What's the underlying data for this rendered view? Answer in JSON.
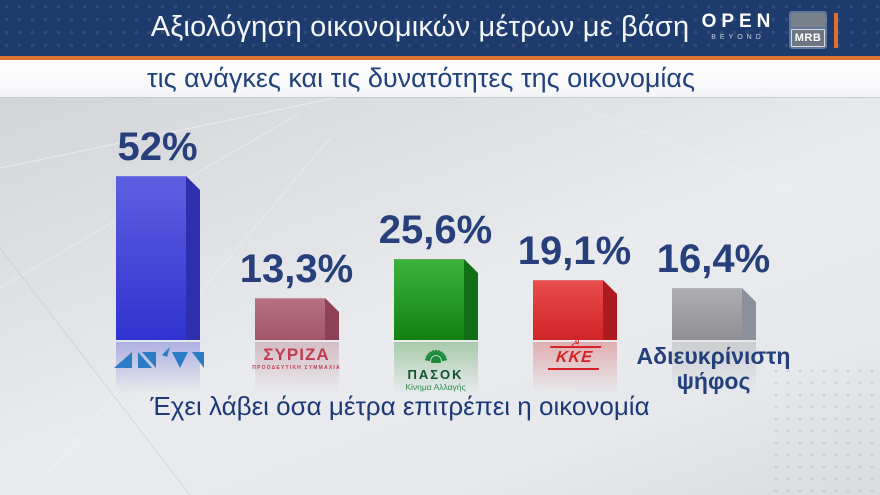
{
  "header": {
    "title": "Αξιολόγηση οικονομικών μέτρων με βάση",
    "subtitle": "τις ανάγκες και τις δυνατότητες της οικονομίας",
    "open_logo": {
      "text": "OPEN",
      "subtext": "BEYOND"
    },
    "mrb_logo": "MRB",
    "colors": {
      "banner": "#1e3b6d",
      "accent_orange": "#dd7231",
      "title_text": "#f4f6fa",
      "subtitle_text": "#21427c"
    }
  },
  "chart_data": {
    "type": "bar",
    "title": "Αξιολόγηση οικονομικών μέτρων με βάση τις ανάγκες και τις δυνατότητες της οικονομίας",
    "caption": "Έχει λάβει όσα μέτρα επιτρέπει η οικονομία",
    "unit": "%",
    "decimal_separator": ",",
    "ylim": [
      0,
      60
    ],
    "grid": false,
    "legend": false,
    "value_text_color": "#27407b",
    "caption_color": "#1d3a78",
    "categories": [
      "ΝΔ",
      "ΣΥΡΙΖΑ",
      "ΠΑΣΟΚ",
      "ΚΚΕ",
      "Αδιευκρίνιστη ψήφος"
    ],
    "values": [
      52,
      13.3,
      25.6,
      19.1,
      16.4
    ],
    "bars": [
      {
        "party": "ΝΔ",
        "value": 52,
        "value_label": "52%",
        "colors": {
          "top": "#5d5fe2",
          "bottom": "#3032cf",
          "side": "#2e2fae"
        },
        "logo": {
          "kind": "nd-triangles",
          "color": "#2b7cc4",
          "alt": "ΝΔ"
        }
      },
      {
        "party": "ΣΥΡΙΖΑ",
        "value": 13.3,
        "value_label": "13,3%",
        "colors": {
          "top": "#b67182",
          "bottom": "#a15767",
          "side": "#8e4156"
        },
        "logo": {
          "kind": "text",
          "main": "ΣΥΡΙΖΑ",
          "sub": "ΠΡΟΟΔΕΥΤΙΚΗ ΣΥΜΜΑΧΙΑ",
          "color": "#c23b4e"
        }
      },
      {
        "party": "ΠΑΣΟΚ",
        "value": 25.6,
        "value_label": "25,6%",
        "colors": {
          "top": "#3cb33c",
          "bottom": "#128012",
          "side": "#0f6f14"
        },
        "logo": {
          "kind": "pasok",
          "main": "ΠΑΣΟΚ",
          "sub": "Κίνημα Αλλαγής",
          "color": "#1c8a3a"
        }
      },
      {
        "party": "ΚΚΕ",
        "value": 19.1,
        "value_label": "19,1%",
        "colors": {
          "top": "#e84c4c",
          "bottom": "#d02428",
          "side": "#ad1b20"
        },
        "logo": {
          "kind": "kke",
          "main": "ΚΚΕ",
          "color": "#d42327"
        }
      },
      {
        "party": "Αδιευκρίνιστη ψήφος",
        "value": 16.4,
        "value_label": "16,4%",
        "colors": {
          "top": "#aeaeb2",
          "bottom": "#8f8f95",
          "side": "#8c909c"
        },
        "logo": {
          "kind": "caption-text",
          "lines": [
            "Αδιευκρίνιστη",
            "ψήφος"
          ],
          "color": "#24407c"
        }
      }
    ]
  }
}
